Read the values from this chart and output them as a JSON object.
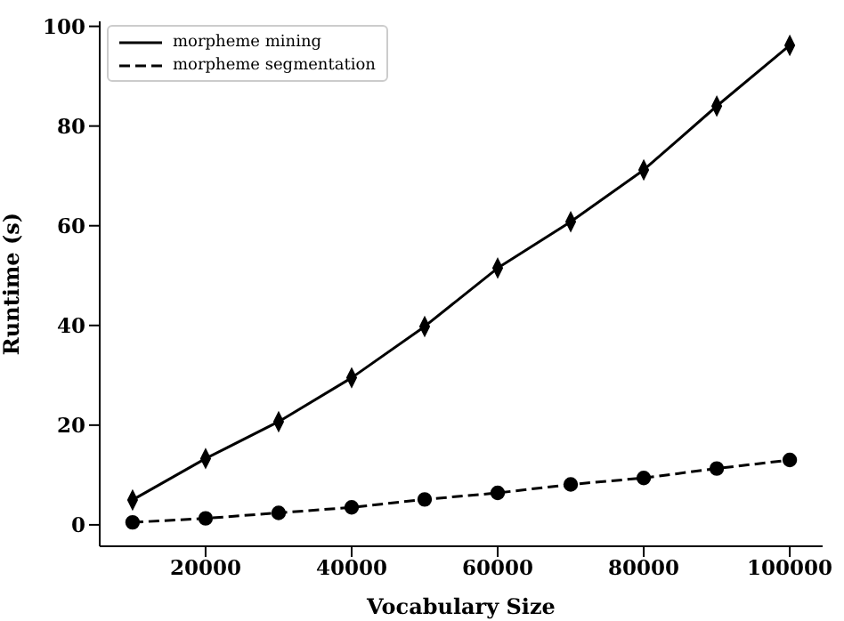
{
  "chart_data": {
    "type": "line",
    "xlabel": "Vocabulary Size",
    "ylabel": "Runtime (s)",
    "x": [
      10000,
      20000,
      30000,
      40000,
      50000,
      60000,
      70000,
      80000,
      90000,
      100000
    ],
    "series": [
      {
        "name": "morpheme mining",
        "color": "#000000",
        "line_style": "solid",
        "marker": "diamond",
        "values": [
          5,
          13.3,
          20.7,
          29.5,
          39.8,
          51.5,
          60.8,
          71.2,
          84,
          96.2
        ]
      },
      {
        "name": "morpheme segmentation",
        "color": "#000000",
        "line_style": "dashed",
        "marker": "circle",
        "values": [
          0.5,
          1.3,
          2.4,
          3.5,
          5.1,
          6.4,
          8.1,
          9.4,
          11.3,
          13
        ]
      }
    ],
    "xlim": [
      5500,
      104500
    ],
    "xticks": [
      20000,
      40000,
      60000,
      80000,
      100000
    ],
    "ylim": [
      -4.3,
      101
    ],
    "yticks": [
      0,
      20,
      40,
      60,
      80,
      100
    ],
    "grid": false,
    "legend": "top left"
  }
}
